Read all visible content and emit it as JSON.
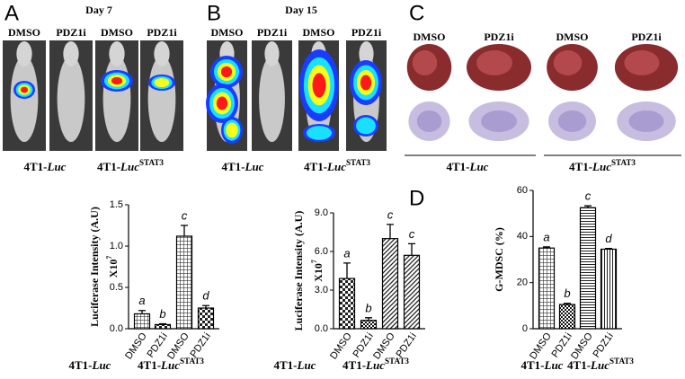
{
  "panels": [
    {
      "label": "A",
      "title": "Day 7",
      "image_labels": [
        "DMSO",
        "PDZ1i",
        "DMSO",
        "PDZ1i"
      ],
      "groups": [
        {
          "prefix": "4T1-",
          "italic": "Luc"
        },
        {
          "prefix": "4T1-",
          "italic": "Luc",
          "sup": "STAT3"
        }
      ]
    },
    {
      "label": "B",
      "title": "Day 15",
      "image_labels": [
        "DMSO",
        "PDZ1i",
        "DMSO",
        "PDZ1i"
      ],
      "groups": [
        {
          "prefix": "4T1-",
          "italic": "Luc"
        },
        {
          "prefix": "4T1-",
          "italic": "Luc",
          "sup": "STAT3"
        }
      ]
    },
    {
      "label": "C",
      "image_labels": [
        "DMSO",
        "PDZ1i",
        "DMSO",
        "PDZ1i"
      ],
      "groups": [
        {
          "prefix": "4T1-",
          "italic": "Luc"
        },
        {
          "prefix": "4T1-",
          "italic": "Luc",
          "sup": "STAT3"
        }
      ]
    }
  ],
  "chart_data": [
    {
      "type": "bar",
      "ylabel": "Luciferase Intensity (A.U)",
      "yscale_label": {
        "text": "X10",
        "sup": "7"
      },
      "categories": [
        "DMSO",
        "PDZ1i",
        "DMSO",
        "PDZ1i"
      ],
      "values": [
        0.18,
        0.05,
        1.12,
        0.25
      ],
      "errors": [
        0.04,
        0.01,
        0.13,
        0.03
      ],
      "annotations": [
        "a",
        "b",
        "c",
        "d"
      ],
      "groups": [
        {
          "prefix": "4T1-",
          "italic": "Luc"
        },
        {
          "prefix": "4T1-",
          "italic": "Luc",
          "sup": "STAT3"
        }
      ],
      "ylim": [
        0,
        1.5
      ],
      "yticks": [
        {
          "value": 0,
          "label": "0.0"
        },
        {
          "value": 0.5,
          "label": "0.5"
        },
        {
          "value": 1,
          "label": "1.0"
        },
        {
          "value": 1.5,
          "label": "1.5"
        }
      ]
    },
    {
      "type": "bar",
      "ylabel": "Luciferase Intensity (A.U)",
      "yscale_label": {
        "text": "X10",
        "sup": "7"
      },
      "categories": [
        "DMSO",
        "PDZ1i",
        "DMSO",
        "PDZ1i"
      ],
      "values": [
        3.9,
        0.65,
        7.0,
        5.7
      ],
      "errors": [
        1.2,
        0.2,
        1.1,
        0.9
      ],
      "annotations": [
        "a",
        "b",
        "c",
        "c"
      ],
      "groups": [
        {
          "prefix": "4T1-",
          "italic": "Luc"
        },
        {
          "prefix": "4T1-",
          "italic": "Luc",
          "sup": "STAT3"
        }
      ],
      "ylim": [
        0,
        9
      ],
      "yticks": [
        {
          "value": 0,
          "label": "0.0"
        },
        {
          "value": 3,
          "label": "3.0"
        },
        {
          "value": 6,
          "label": "6.0"
        },
        {
          "value": 9,
          "label": "9.0"
        }
      ]
    },
    {
      "type": "bar",
      "panel_label": "D",
      "ylabel": "G-MDSC (%)",
      "categories": [
        "DMSO",
        "PDZ1i",
        "DMSO",
        "PDZ1i"
      ],
      "values": [
        35,
        10.5,
        52.5,
        34.5
      ],
      "errors": [
        0.5,
        0.5,
        0.8,
        0.3
      ],
      "annotations": [
        "a",
        "b",
        "c",
        "d"
      ],
      "groups": [
        {
          "prefix": "4T1-",
          "italic": "Luc"
        },
        {
          "prefix": "4T1-",
          "italic": "Luc",
          "sup": "STAT3"
        }
      ],
      "ylim": [
        0,
        60
      ],
      "yticks": [
        0,
        20,
        40,
        60
      ]
    }
  ]
}
